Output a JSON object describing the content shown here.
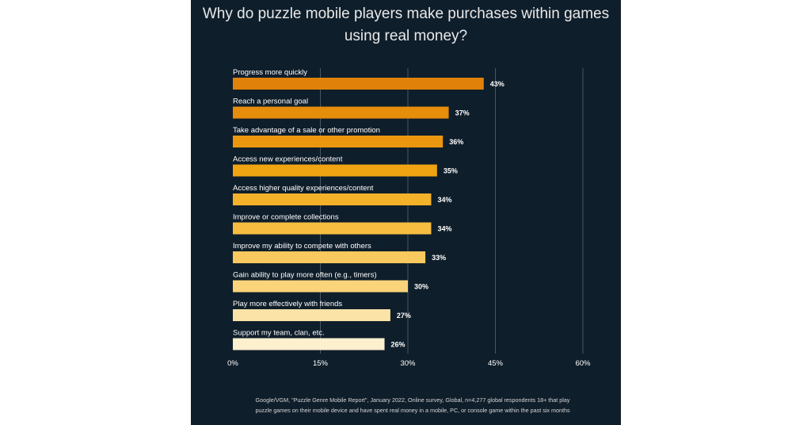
{
  "chart_data": {
    "type": "bar",
    "orientation": "horizontal",
    "title": "Why do puzzle mobile players make purchases within games using real money?",
    "categories": [
      "Progress more quickly",
      "Reach a personal goal",
      "Take advantage of a sale or other promotion",
      "Access new experiences/content",
      "Access higher quality experiences/content",
      "Improve or complete collections",
      "Improve my ability to compete with others",
      "Gain ability to play more often (e.g., timers)",
      "Play more effectively with friends",
      "Support my team, clan, etc."
    ],
    "values": [
      43,
      37,
      36,
      35,
      34,
      34,
      33,
      30,
      27,
      26
    ],
    "value_labels": [
      "43%",
      "37%",
      "36%",
      "35%",
      "34%",
      "34%",
      "33%",
      "30%",
      "27%",
      "26%"
    ],
    "bar_colors": [
      "#e0820a",
      "#e68d0c",
      "#eb960f",
      "#f0a412",
      "#f3b22a",
      "#f6bd40",
      "#f8c95e",
      "#fad47b",
      "#fbe2a6",
      "#fdf0cf"
    ],
    "xlim": [
      0,
      60
    ],
    "xticks": [
      0,
      15,
      30,
      45,
      60
    ],
    "xtick_labels": [
      "0%",
      "15%",
      "30%",
      "45%",
      "60%"
    ],
    "grid": true,
    "colors": {
      "background": "#0f1e2b",
      "gridline": "#4a5560",
      "text": "#ffffff"
    },
    "source": "Google/VGM, \"Puzzle Genre Mobile Report\", January 2022, Online survey, Global, n=4,277 global respondents 18+ that play puzzle games on their mobile device and have spent real money in a mobile, PC, or console game within the past six months"
  }
}
